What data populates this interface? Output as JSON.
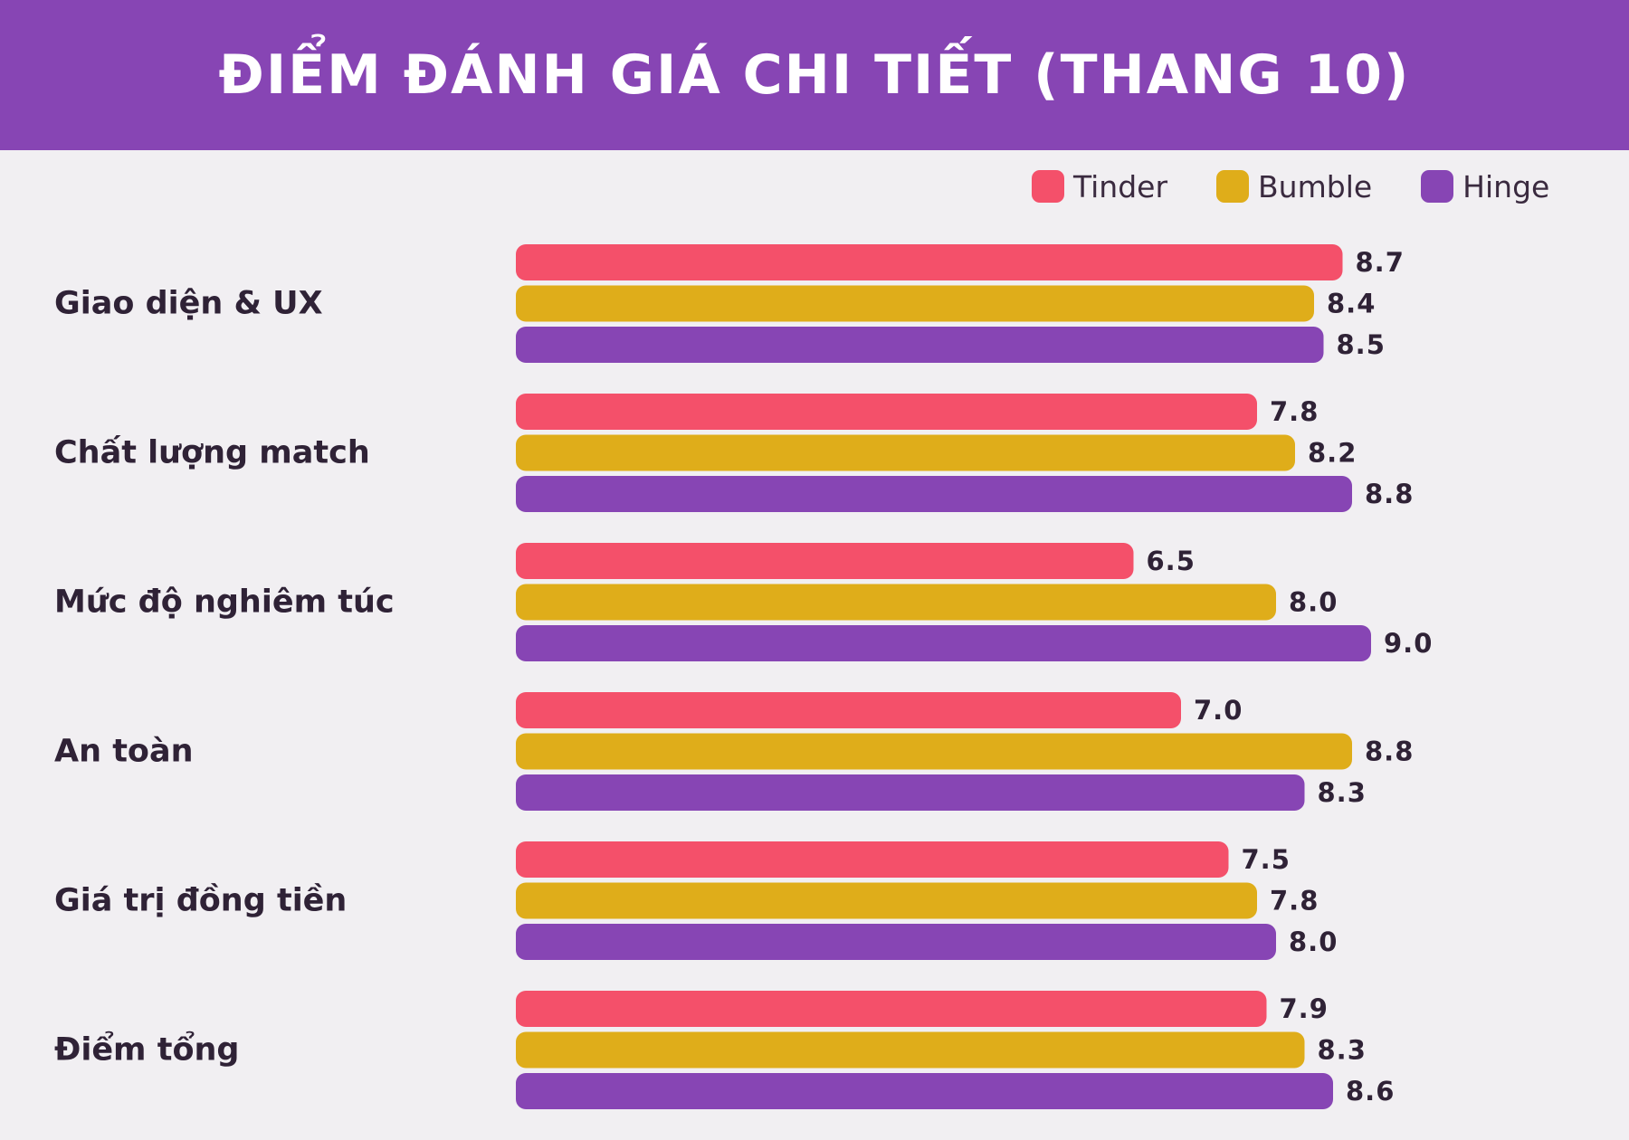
{
  "chart_data": {
    "type": "bar",
    "orientation": "horizontal",
    "title": "ĐIỂM ĐÁNH GIÁ CHI TIẾT (THANG 10)",
    "categories": [
      "Giao diện & UX",
      "Chất lượng match",
      "Mức độ nghiêm túc",
      "An toàn",
      "Giá trị đồng tiền",
      "Điểm tổng"
    ],
    "series": [
      {
        "name": "Tinder",
        "color": "#f4506a",
        "values": [
          8.7,
          7.8,
          6.5,
          7.0,
          7.5,
          7.9
        ]
      },
      {
        "name": "Bumble",
        "color": "#dfad1a",
        "values": [
          8.4,
          8.2,
          8.0,
          8.8,
          7.8,
          8.3
        ]
      },
      {
        "name": "Hinge",
        "color": "#8745b4",
        "values": [
          8.5,
          8.8,
          9.0,
          8.3,
          8.0,
          8.6
        ]
      }
    ],
    "value_format": "one-decimal",
    "xlim": [
      0,
      10
    ],
    "grid": false,
    "legend_position": "top-right"
  },
  "colors": {
    "header_bg": "#8745b4",
    "background": "#f1eff2",
    "text": "#2f2236"
  }
}
